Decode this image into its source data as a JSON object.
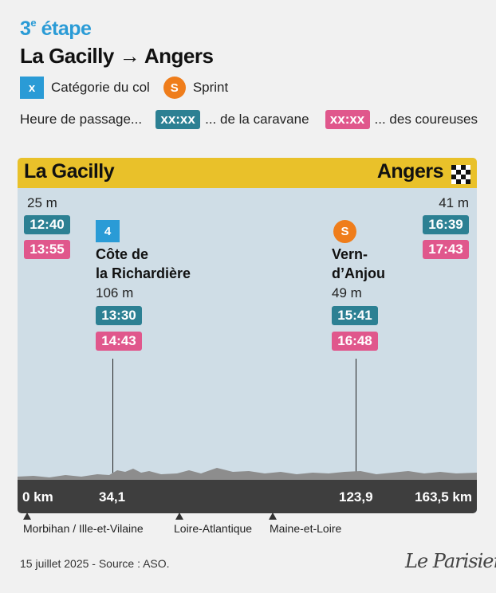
{
  "header": {
    "stage_number": "3",
    "stage_suffix": "e",
    "stage_word": "étape",
    "route_start": "La Gacilly",
    "route_arrow": "→",
    "route_end": "Angers"
  },
  "legend": {
    "category_symbol": "x",
    "category_label": "Catégorie du col",
    "sprint_symbol": "S",
    "sprint_label": "Sprint",
    "time_label": "Heure de passage...",
    "caravan_sample": "xx:xx",
    "caravan_label": "... de la caravane",
    "riders_sample": "xx:xx",
    "riders_label": "... des coureuses"
  },
  "profile": {
    "start_city": "La Gacilly",
    "end_city": "Angers",
    "start": {
      "altitude": "25 m",
      "caravan_time": "12:40",
      "riders_time": "13:55"
    },
    "end": {
      "altitude": "41 m",
      "caravan_time": "16:39",
      "riders_time": "17:43"
    },
    "climb": {
      "category": "4",
      "name_line1": "Côte de",
      "name_line2": "la Richardière",
      "altitude": "106 m",
      "caravan_time": "13:30",
      "riders_time": "14:43",
      "km": 34.1
    },
    "sprint": {
      "symbol": "S",
      "name_line1": "Vern-",
      "name_line2": "d’Anjou",
      "altitude": "49 m",
      "caravan_time": "15:41",
      "riders_time": "16:48",
      "km": 123.9
    },
    "km_labels": {
      "start": "0 km",
      "climb": "34,1",
      "sprint": "123,9",
      "end": "163,5 km"
    },
    "total_km": 163.5
  },
  "regions": [
    "Morbihan / Ille-et-Vilaine",
    "Loire-Atlantique",
    "Maine-et-Loire"
  ],
  "colors": {
    "caravan": "#2c8093",
    "riders": "#e0578c",
    "category": "#2a9bd6",
    "sprint": "#ef7d1b",
    "bar": "#e9c12a",
    "panel": "#cfdde6"
  },
  "footer": {
    "source": "15 juillet 2025 - Source : ASO.",
    "logo": "Le Parisien"
  }
}
